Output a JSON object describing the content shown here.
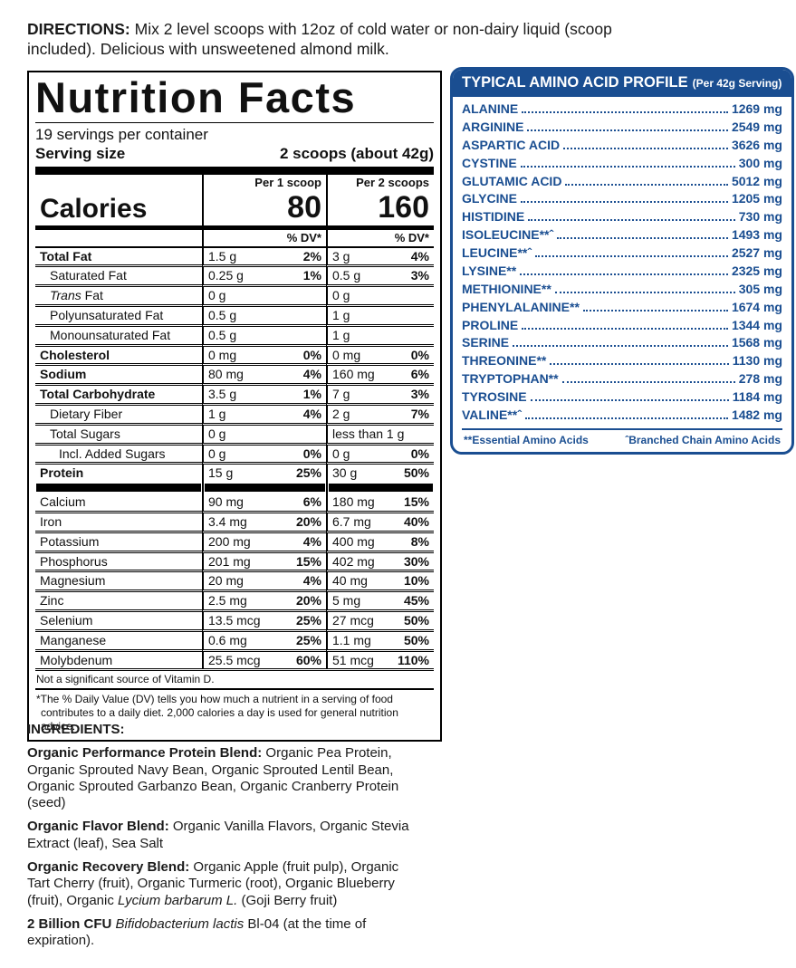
{
  "directions": {
    "label": "DIRECTIONS:",
    "text": " Mix 2 level scoops with 12oz of cold water or non-dairy liquid (scoop included). Delicious with unsweetened almond milk."
  },
  "facts": {
    "title": "Nutrition Facts",
    "servings_per_container": "19 servings per container",
    "serving_size_label": "Serving size",
    "serving_size_value": "2 scoops (about 42g)",
    "col1_header": "Per 1 scoop",
    "col2_header": "Per 2 scoops",
    "calories_label": "Calories",
    "calories_per_1_scoop": "80",
    "calories_per_2_scoops": "160",
    "dv_header": "% DV*",
    "rows": [
      {
        "label": "Total Fat",
        "bold": true,
        "v1": "1.5 g",
        "dv1": "2%",
        "v2": "3 g",
        "dv2": "4%"
      },
      {
        "label": "Saturated Fat",
        "indent": 1,
        "v1": "0.25 g",
        "dv1": "1%",
        "v2": "0.5 g",
        "dv2": "3%"
      },
      {
        "label_italic": "Trans",
        "label": " Fat",
        "indent": 1,
        "v1": "0 g",
        "dv1": "",
        "v2": "0 g",
        "dv2": ""
      },
      {
        "label": "Polyunsaturated Fat",
        "indent": 1,
        "v1": "0.5 g",
        "dv1": "",
        "v2": "1 g",
        "dv2": ""
      },
      {
        "label": "Monounsaturated Fat",
        "indent": 1,
        "v1": "0.5 g",
        "dv1": "",
        "v2": "1 g",
        "dv2": ""
      },
      {
        "label": "Cholesterol",
        "bold": true,
        "v1": "0 mg",
        "dv1": "0%",
        "v2": "0 mg",
        "dv2": "0%"
      },
      {
        "label": "Sodium",
        "bold": true,
        "v1": "80 mg",
        "dv1": "4%",
        "v2": "160 mg",
        "dv2": "6%"
      },
      {
        "label": "Total Carbohydrate",
        "bold": true,
        "v1": "3.5 g",
        "dv1": "1%",
        "v2": "7 g",
        "dv2": "3%"
      },
      {
        "label": "Dietary Fiber",
        "indent": 1,
        "v1": "1 g",
        "dv1": "4%",
        "v2": "2 g",
        "dv2": "7%"
      },
      {
        "label": "Total Sugars",
        "indent": 1,
        "v1": "0 g",
        "dv1": "",
        "v2": "less than 1 g",
        "dv2": ""
      },
      {
        "label": "Incl. Added Sugars",
        "indent": 2,
        "v1": "0 g",
        "dv1": "0%",
        "v2": "0 g",
        "dv2": "0%"
      },
      {
        "label": "Protein",
        "bold": true,
        "v1": "15 g",
        "dv1": "25%",
        "v2": "30 g",
        "dv2": "50%",
        "bar_after": true
      },
      {
        "label": "Calcium",
        "v1": "90 mg",
        "dv1": "6%",
        "v2": "180 mg",
        "dv2": "15%"
      },
      {
        "label": "Iron",
        "v1": "3.4 mg",
        "dv1": "20%",
        "v2": "6.7 mg",
        "dv2": "40%"
      },
      {
        "label": "Potassium",
        "v1": "200 mg",
        "dv1": "4%",
        "v2": "400 mg",
        "dv2": "8%"
      },
      {
        "label": "Phosphorus",
        "v1": "201 mg",
        "dv1": "15%",
        "v2": "402 mg",
        "dv2": "30%"
      },
      {
        "label": "Magnesium",
        "v1": "20 mg",
        "dv1": "4%",
        "v2": "40 mg",
        "dv2": "10%"
      },
      {
        "label": "Zinc",
        "v1": "2.5 mg",
        "dv1": "20%",
        "v2": "5 mg",
        "dv2": "45%"
      },
      {
        "label": "Selenium",
        "v1": "13.5 mcg",
        "dv1": "25%",
        "v2": "27 mcg",
        "dv2": "50%"
      },
      {
        "label": "Manganese",
        "v1": "0.6 mg",
        "dv1": "25%",
        "v2": "1.1 mg",
        "dv2": "50%"
      },
      {
        "label": "Molybdenum",
        "v1": "25.5 mcg",
        "dv1": "60%",
        "v2": "51 mcg",
        "dv2": "110%"
      }
    ],
    "not_significant": "Not a significant source of Vitamin D.",
    "footnote": "*The % Daily Value (DV) tells you how much a nutrient in a serving of food contributes to a daily diet. 2,000 calories a day is used for general nutrition advice."
  },
  "amino": {
    "title": "TYPICAL AMINO ACID PROFILE",
    "subtitle": "(Per 42g Serving)",
    "items": [
      {
        "name": "ALANINE",
        "value": "1269 mg"
      },
      {
        "name": "ARGININE",
        "value": "2549 mg"
      },
      {
        "name": "ASPARTIC ACID",
        "value": "3626 mg"
      },
      {
        "name": "CYSTINE",
        "value": "300 mg"
      },
      {
        "name": "GLUTAMIC ACID",
        "value": "5012 mg"
      },
      {
        "name": "GLYCINE",
        "value": "1205 mg"
      },
      {
        "name": "HISTIDINE",
        "value": "730 mg"
      },
      {
        "name": "ISOLEUCINE**ˆ",
        "value": "1493 mg"
      },
      {
        "name": "LEUCINE**ˆ",
        "value": "2527 mg"
      },
      {
        "name": "LYSINE**",
        "value": "2325 mg"
      },
      {
        "name": "METHIONINE**",
        "value": "305 mg"
      },
      {
        "name": "PHENYLALANINE**",
        "value": "1674 mg"
      },
      {
        "name": "PROLINE",
        "value": "1344 mg"
      },
      {
        "name": "SERINE",
        "value": "1568 mg"
      },
      {
        "name": "THREONINE**",
        "value": "1130 mg"
      },
      {
        "name": "TRYPTOPHAN**",
        "value": "278 mg"
      },
      {
        "name": "TYROSINE",
        "value": "1184 mg"
      },
      {
        "name": "VALINE**ˆ",
        "value": "1482 mg"
      }
    ],
    "footnote_essential": "**Essential Amino Acids",
    "footnote_bcaa": "ˆBranched Chain Amino Acids"
  },
  "ingredients": {
    "heading": "INGREDIENTS:",
    "paragraphs": [
      {
        "segments": [
          {
            "t": "Organic Performance Protein Blend: ",
            "b": true
          },
          {
            "t": "Organic Pea Protein, Organic Sprouted Navy Bean, Organic Sprouted Lentil Bean, Organic Sprouted Garbanzo Bean, Organic Cranberry Protein (seed)"
          }
        ]
      },
      {
        "segments": [
          {
            "t": "Organic Flavor Blend: ",
            "b": true
          },
          {
            "t": "Organic Vanilla Flavors, Organic Stevia Extract (leaf), Sea Salt"
          }
        ]
      },
      {
        "segments": [
          {
            "t": "Organic Recovery Blend: ",
            "b": true
          },
          {
            "t": "Organic Apple (fruit pulp), Organic Tart Cherry (fruit), Organic Turmeric (root), Organic Blueberry (fruit), Organic "
          },
          {
            "t": "Lycium barbarum L.",
            "i": true
          },
          {
            "t": " (Goji Berry fruit)"
          }
        ]
      },
      {
        "segments": [
          {
            "t": "2 Billion CFU ",
            "b": true
          },
          {
            "t": "Bifidobacterium lactis",
            "i": true
          },
          {
            "t": " Bl-04 (at the time of expiration)."
          }
        ]
      }
    ]
  },
  "colors": {
    "accent_blue": "#1a4e91",
    "rule_black": "#000000"
  }
}
